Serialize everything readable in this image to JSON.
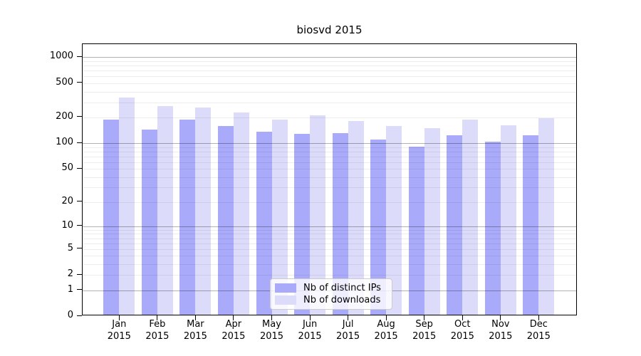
{
  "chart_data": {
    "type": "bar",
    "title": "biosvd 2015",
    "categories": [
      "Jan",
      "Feb",
      "Mar",
      "Apr",
      "May",
      "Jun",
      "Jul",
      "Aug",
      "Sep",
      "Oct",
      "Nov",
      "Dec"
    ],
    "x_tick_year": "2015",
    "series": [
      {
        "name": "Nb of distinct IPs",
        "key": "nb-of-distinct-ips",
        "color": "#aaaafa",
        "values": [
          180,
          138,
          180,
          154,
          130,
          124,
          125,
          107,
          88,
          120,
          101,
          119
        ]
      },
      {
        "name": "Nb of downloads",
        "key": "nb-of-downloads",
        "color": "#dcdcfa",
        "values": [
          330,
          262,
          252,
          218,
          180,
          202,
          173,
          152,
          143,
          181,
          156,
          190
        ]
      }
    ],
    "y_axis": {
      "scale": "log10(1+y)",
      "tick_labels": [
        0,
        1,
        2,
        5,
        10,
        20,
        50,
        100,
        200,
        500,
        1000
      ],
      "major_gridlines": [
        1,
        10,
        100,
        1000
      ],
      "range_max": 1430
    },
    "grid": true,
    "legend_position": "inside-bottom-center"
  }
}
